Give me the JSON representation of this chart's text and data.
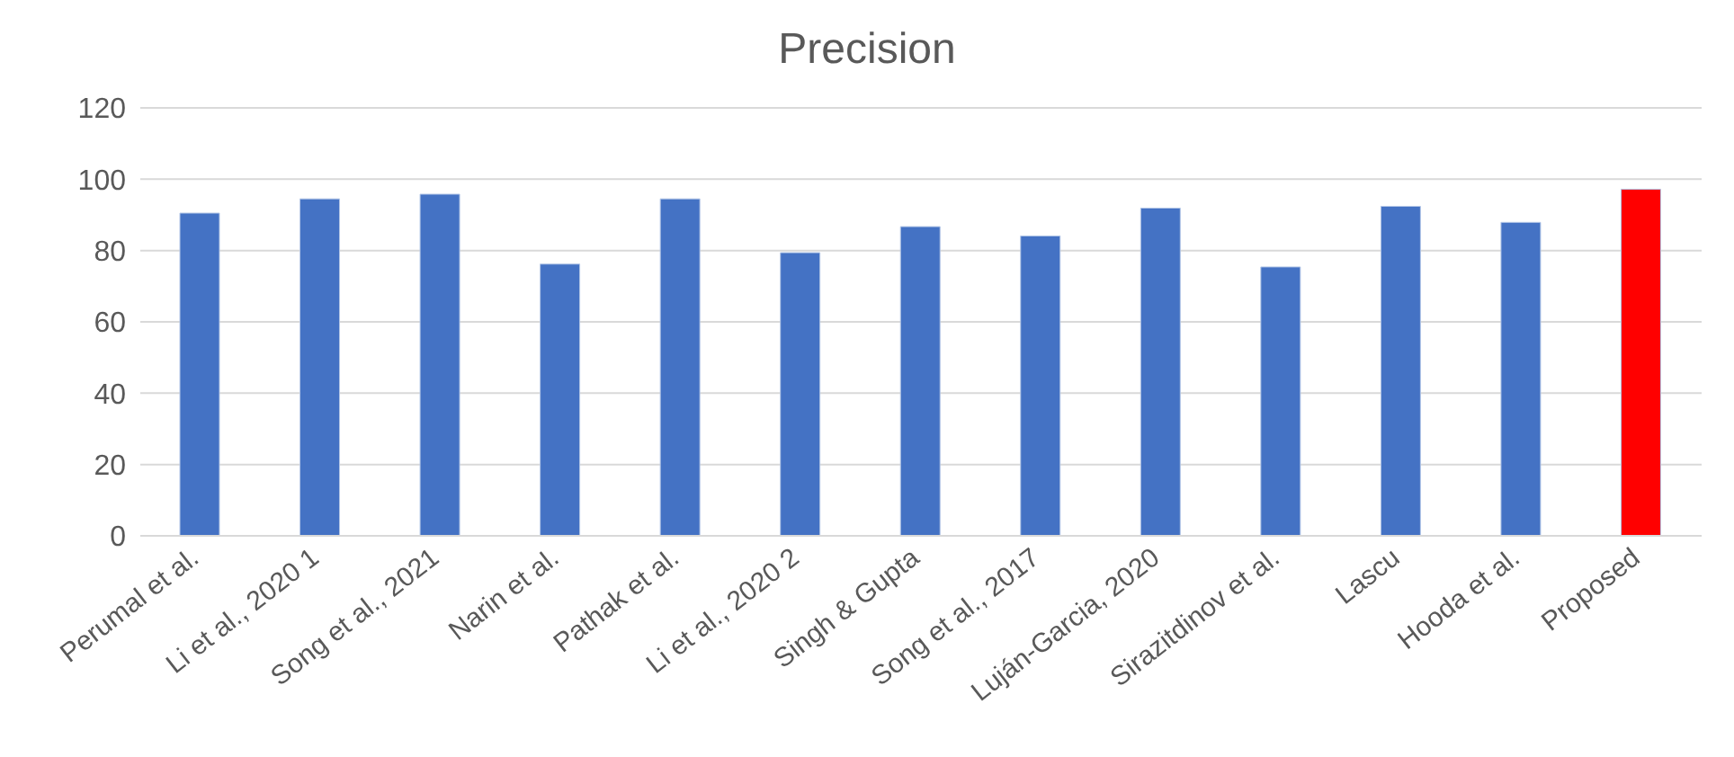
{
  "chart_data": {
    "type": "bar",
    "title": "Precision",
    "categories": [
      "Perumal et al.",
      "Li et al., 2020 1",
      "Song et al., 2021",
      "Narin et al.",
      "Pathak et al.",
      "Li et al., 2020 2",
      "Singh & Gupta",
      "Song et al., 2017",
      "Luján-Garcia, 2020",
      "Sirazitdinov et al.",
      "Lascu",
      "Hooda et al.",
      "Proposed"
    ],
    "values": [
      90.5,
      94.5,
      95.8,
      76.2,
      94.5,
      79.4,
      86.7,
      84.1,
      91.9,
      75.4,
      92.4,
      87.9,
      97.2
    ],
    "colors": [
      "#4472c4",
      "#4472c4",
      "#4472c4",
      "#4472c4",
      "#4472c4",
      "#4472c4",
      "#4472c4",
      "#4472c4",
      "#4472c4",
      "#4472c4",
      "#4472c4",
      "#4472c4",
      "#ff0000"
    ],
    "ylim": [
      0,
      120
    ],
    "yticks": [
      0,
      20,
      40,
      60,
      80,
      100,
      120
    ],
    "grid": "y"
  }
}
